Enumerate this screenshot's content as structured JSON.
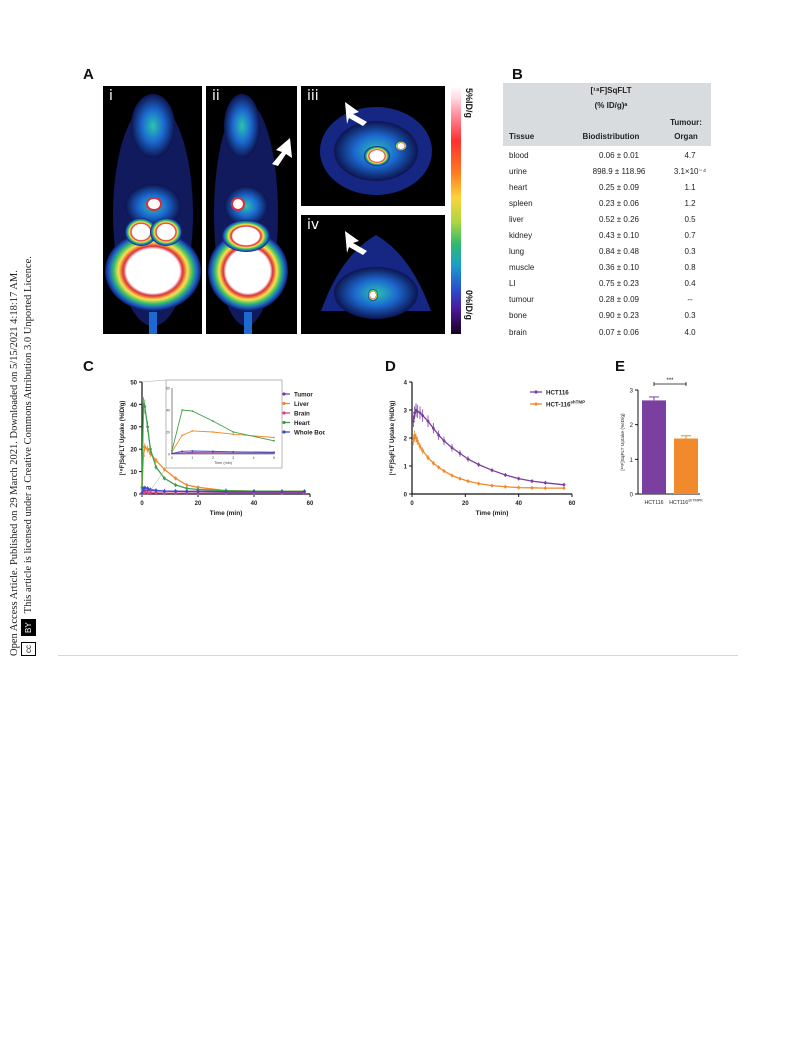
{
  "sidebar": {
    "line1": "Open Access Article. Published on 29 March 2021. Downloaded on 5/15/2021 4:18:17 AM.",
    "line2": "This article is licensed under a Creative Commons Attribution 3.0 Unported Licence.",
    "cc_label": "cc",
    "by_label": "BY"
  },
  "panels": {
    "A": "A",
    "B": "B",
    "C": "C",
    "D": "D",
    "E": "E"
  },
  "pet_images": {
    "labels": [
      "i",
      "ii",
      "iii",
      "iv"
    ],
    "scale_top": "5%ID/g",
    "scale_bottom": "0%ID/g"
  },
  "table": {
    "header_compound": "[¹⁸F]SqFLT",
    "header_units": "(% ID/g)ᵃ",
    "col_tissue": "Tissue",
    "col_bio": "Biodistribution",
    "col_ratio_1": "Tumour:",
    "col_ratio_2": "Organ",
    "rows": [
      {
        "tissue": "blood",
        "bio": "0.06 ± 0.01",
        "ratio": "4.7"
      },
      {
        "tissue": "urine",
        "bio": "898.9 ± 118.96",
        "ratio": "3.1×10⁻⁴"
      },
      {
        "tissue": "heart",
        "bio": "0.25 ± 0.09",
        "ratio": "1.1"
      },
      {
        "tissue": "spleen",
        "bio": "0.23 ± 0.06",
        "ratio": "1.2"
      },
      {
        "tissue": "liver",
        "bio": "0.52 ± 0.26",
        "ratio": "0.5"
      },
      {
        "tissue": "kidney",
        "bio": "0.43 ± 0.10",
        "ratio": "0.7"
      },
      {
        "tissue": "lung",
        "bio": "0.84 ± 0.48",
        "ratio": "0.3"
      },
      {
        "tissue": "muscle",
        "bio": "0.36 ± 0.10",
        "ratio": "0.8"
      },
      {
        "tissue": "LI",
        "bio": "0.75 ± 0.23",
        "ratio": "0.4"
      },
      {
        "tissue": "tumour",
        "bio": "0.28 ± 0.09",
        "ratio": "--"
      },
      {
        "tissue": "bone",
        "bio": "0.90 ± 0.23",
        "ratio": "0.3"
      },
      {
        "tissue": "brain",
        "bio": "0.07 ± 0.06",
        "ratio": "4.0"
      }
    ]
  },
  "chart_data": [
    {
      "id": "C",
      "type": "line",
      "xlabel": "Time (min)",
      "ylabel": "[¹⁸F]SqFLT Uptake (%ID/g)",
      "xlim": [
        0,
        60
      ],
      "ylim": [
        0,
        50
      ],
      "xticks": [
        0,
        20,
        40,
        60
      ],
      "yticks": [
        0,
        10,
        20,
        30,
        40,
        50
      ],
      "legend_placement": "top-right",
      "series": [
        {
          "name": "Tumor",
          "color": "#7b3fa0",
          "x": [
            0,
            0.5,
            1,
            2,
            3,
            5,
            8,
            12,
            16,
            20,
            30,
            40,
            50,
            58
          ],
          "y": [
            0.5,
            1.0,
            1.5,
            1.6,
            1.5,
            1.4,
            1.3,
            1.3,
            1.2,
            1.2,
            1.2,
            1.1,
            1.1,
            1.1
          ]
        },
        {
          "name": "Liver",
          "color": "#f08a2c",
          "x": [
            0,
            0.5,
            1,
            2,
            3,
            5,
            8,
            12,
            16,
            20,
            30,
            40,
            50,
            58
          ],
          "y": [
            2,
            17,
            21,
            20,
            18,
            15,
            11,
            7,
            4,
            3,
            1.5,
            1.3,
            1.2,
            1.2
          ]
        },
        {
          "name": "Brain",
          "color": "#e0408a",
          "x": [
            0,
            0.5,
            1,
            2,
            3,
            5,
            8,
            12,
            16,
            20,
            30,
            40,
            50,
            58
          ],
          "y": [
            0.2,
            0.5,
            0.6,
            0.6,
            0.5,
            0.5,
            0.4,
            0.4,
            0.4,
            0.4,
            0.4,
            0.4,
            0.4,
            0.4
          ]
        },
        {
          "name": "Heart",
          "color": "#3fa04a",
          "x": [
            0,
            0.5,
            1,
            2,
            3,
            5,
            8,
            12,
            16,
            20,
            30,
            40,
            50,
            58
          ],
          "y": [
            3,
            40,
            39,
            30,
            20,
            12,
            7,
            4,
            2.5,
            2,
            1.5,
            1.3,
            1.2,
            1.2
          ]
        },
        {
          "name": "Whole Body",
          "color": "#3a4cc9",
          "x": [
            0,
            0.5,
            1,
            2,
            3,
            5,
            8,
            12,
            16,
            20,
            30,
            40,
            50,
            58
          ],
          "y": [
            0.5,
            2.5,
            2.8,
            2.5,
            2.0,
            1.6,
            1.3,
            1.2,
            1.1,
            1.1,
            1.0,
            1.0,
            1.0,
            1.0
          ]
        }
      ],
      "inset": {
        "xlabel": "Time (min)",
        "xlim": [
          0,
          5
        ],
        "ylim": [
          0,
          60
        ],
        "xticks": [
          0,
          1,
          2,
          3,
          4,
          5
        ],
        "yticks": [
          0,
          20,
          40,
          60
        ]
      }
    },
    {
      "id": "D",
      "type": "line",
      "xlabel": "Time (min)",
      "ylabel": "[¹⁸F]SqFLT Uptake (%ID/g)",
      "xlim": [
        0,
        60
      ],
      "ylim": [
        0,
        4
      ],
      "xticks": [
        0,
        20,
        40,
        60
      ],
      "yticks": [
        0,
        1,
        2,
        3,
        4
      ],
      "legend_placement": "top-right",
      "series": [
        {
          "name": "HCT116",
          "color": "#7b3fa0",
          "x": [
            0.5,
            1,
            1.5,
            2,
            3,
            4,
            6,
            8,
            10,
            12,
            15,
            18,
            21,
            25,
            30,
            35,
            40,
            45,
            50,
            57
          ],
          "y": [
            2.6,
            2.9,
            3.0,
            2.95,
            2.9,
            2.8,
            2.6,
            2.35,
            2.1,
            1.9,
            1.65,
            1.45,
            1.25,
            1.05,
            0.85,
            0.68,
            0.55,
            0.46,
            0.4,
            0.33
          ]
        },
        {
          "name": "HCT-116",
          "name_sup": "shTMPK",
          "color": "#f08a2c",
          "x": [
            0.5,
            1,
            1.5,
            2,
            3,
            4,
            6,
            8,
            10,
            12,
            15,
            18,
            21,
            25,
            30,
            35,
            40,
            45,
            50,
            57
          ],
          "y": [
            1.9,
            2.1,
            2.0,
            1.9,
            1.7,
            1.55,
            1.3,
            1.1,
            0.95,
            0.82,
            0.66,
            0.55,
            0.46,
            0.37,
            0.3,
            0.26,
            0.23,
            0.22,
            0.21,
            0.21
          ]
        }
      ]
    },
    {
      "id": "E",
      "type": "bar",
      "ylabel": "[¹⁸F]SqFLT Uptake (%ID/g)",
      "ylim": [
        0,
        3
      ],
      "yticks": [
        0,
        1,
        2,
        3
      ],
      "categories": [
        "HCT116",
        "HCT116"
      ],
      "category_sups": [
        "",
        "shTMPK"
      ],
      "values": [
        2.7,
        1.6
      ],
      "errors": [
        0.1,
        0.08
      ],
      "colors": [
        "#7b3fa0",
        "#f08a2c"
      ],
      "significance": "***"
    }
  ]
}
